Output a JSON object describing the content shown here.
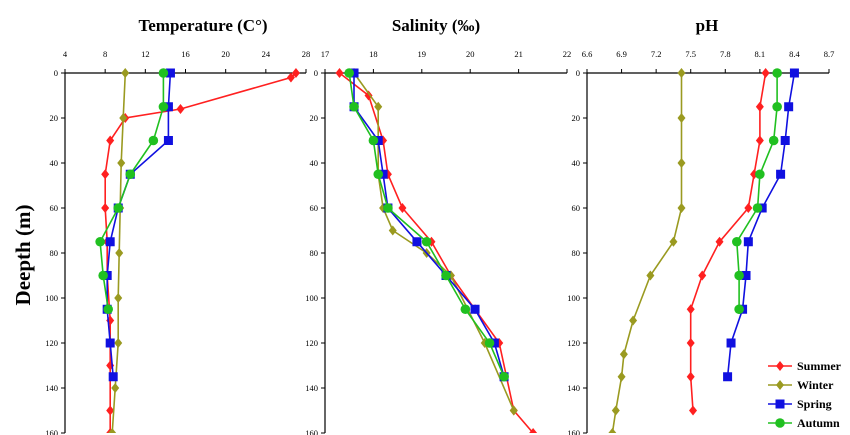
{
  "colors": {
    "Summer": "#ff2020",
    "Winter": "#9a9a20",
    "Spring": "#1010e0",
    "Autumn": "#20c020"
  },
  "legend": [
    "Summer",
    "Winter",
    "Spring",
    "Autumn"
  ],
  "ylabel": "Deepth (m)",
  "chart_data": [
    {
      "type": "line",
      "title": "Temperature (C°)",
      "xlabel": "",
      "ylabel": "Deepth (m)",
      "xlim": [
        4,
        28
      ],
      "xticks": [
        "4",
        "8",
        "12",
        "16",
        "20",
        "24",
        "28"
      ],
      "ylim": [
        0,
        160
      ],
      "yticks": [
        "0",
        "20",
        "40",
        "60",
        "80",
        "100",
        "120",
        "140",
        "160"
      ],
      "x_axis_position": "top",
      "legend_position": "bottom-right",
      "series": [
        {
          "name": "Summer",
          "marker": "diamond",
          "points": [
            [
              27,
              0
            ],
            [
              26.5,
              2
            ],
            [
              15.5,
              16
            ],
            [
              10,
              20
            ],
            [
              8.5,
              30
            ],
            [
              8,
              45
            ],
            [
              8,
              60
            ],
            [
              8.2,
              75
            ],
            [
              8.2,
              90
            ],
            [
              8.5,
              110
            ],
            [
              8.5,
              130
            ],
            [
              8.5,
              150
            ],
            [
              8.5,
              160
            ]
          ]
        },
        {
          "name": "Winter",
          "marker": "diamond",
          "points": [
            [
              10,
              0
            ],
            [
              9.8,
              20
            ],
            [
              9.6,
              40
            ],
            [
              9.5,
              60
            ],
            [
              9.4,
              80
            ],
            [
              9.3,
              100
            ],
            [
              9.3,
              120
            ],
            [
              9,
              140
            ],
            [
              8.7,
              160
            ]
          ]
        },
        {
          "name": "Spring",
          "marker": "square",
          "points": [
            [
              14.5,
              0
            ],
            [
              14.3,
              15
            ],
            [
              14.3,
              30
            ],
            [
              10.5,
              45
            ],
            [
              9.3,
              60
            ],
            [
              8.5,
              75
            ],
            [
              8.2,
              90
            ],
            [
              8.2,
              105
            ],
            [
              8.5,
              120
            ],
            [
              8.8,
              135
            ]
          ]
        },
        {
          "name": "Autumn",
          "marker": "circle",
          "points": [
            [
              13.8,
              0
            ],
            [
              13.8,
              15
            ],
            [
              12.8,
              30
            ],
            [
              10.5,
              45
            ],
            [
              9.3,
              60
            ],
            [
              7.5,
              75
            ],
            [
              7.8,
              90
            ],
            [
              8.3,
              105
            ]
          ]
        }
      ]
    },
    {
      "type": "line",
      "title": "Salinity (‰)",
      "xlabel": "",
      "ylabel": "Deepth (m)",
      "xlim": [
        17,
        22
      ],
      "xticks": [
        "17",
        "18",
        "19",
        "20",
        "21",
        "22"
      ],
      "ylim": [
        0,
        160
      ],
      "yticks": [
        "0",
        "20",
        "40",
        "60",
        "80",
        "100",
        "120",
        "140",
        "160"
      ],
      "x_axis_position": "top",
      "legend_position": "bottom-right",
      "series": [
        {
          "name": "Summer",
          "marker": "diamond",
          "points": [
            [
              17.3,
              0
            ],
            [
              17.9,
              10
            ],
            [
              18.2,
              30
            ],
            [
              18.3,
              45
            ],
            [
              18.6,
              60
            ],
            [
              19.2,
              75
            ],
            [
              19.6,
              90
            ],
            [
              20.1,
              105
            ],
            [
              20.6,
              120
            ],
            [
              20.9,
              150
            ],
            [
              21.3,
              160
            ]
          ]
        },
        {
          "name": "Winter",
          "marker": "diamond",
          "points": [
            [
              17.6,
              0
            ],
            [
              18.1,
              15
            ],
            [
              18.1,
              30
            ],
            [
              18.1,
              45
            ],
            [
              18.2,
              60
            ],
            [
              18.4,
              70
            ],
            [
              19.1,
              80
            ],
            [
              19.6,
              90
            ],
            [
              20.3,
              120
            ],
            [
              20.9,
              150
            ]
          ]
        },
        {
          "name": "Spring",
          "marker": "square",
          "points": [
            [
              17.6,
              0
            ],
            [
              17.6,
              15
            ],
            [
              18.1,
              30
            ],
            [
              18.2,
              45
            ],
            [
              18.3,
              60
            ],
            [
              18.9,
              75
            ],
            [
              19.5,
              90
            ],
            [
              20.1,
              105
            ],
            [
              20.5,
              120
            ],
            [
              20.7,
              135
            ]
          ]
        },
        {
          "name": "Autumn",
          "marker": "circle",
          "points": [
            [
              17.5,
              0
            ],
            [
              17.6,
              15
            ],
            [
              18.0,
              30
            ],
            [
              18.1,
              45
            ],
            [
              18.3,
              60
            ],
            [
              19.1,
              75
            ],
            [
              19.5,
              90
            ],
            [
              19.9,
              105
            ],
            [
              20.4,
              120
            ],
            [
              20.7,
              135
            ]
          ]
        }
      ]
    },
    {
      "type": "line",
      "title": "pH",
      "xlabel": "",
      "ylabel": "Deepth (m)",
      "xlim": [
        6.6,
        8.7
      ],
      "xticks": [
        "6.6",
        "6.9",
        "7.2",
        "7.5",
        "7.8",
        "8.1",
        "8.4",
        "8.7"
      ],
      "ylim": [
        0,
        160
      ],
      "yticks": [
        "0",
        "20",
        "40",
        "60",
        "80",
        "100",
        "120",
        "140",
        "160"
      ],
      "x_axis_position": "top",
      "legend_position": "bottom-right",
      "series": [
        {
          "name": "Summer",
          "marker": "diamond",
          "points": [
            [
              8.15,
              0
            ],
            [
              8.1,
              15
            ],
            [
              8.1,
              30
            ],
            [
              8.05,
              45
            ],
            [
              8.0,
              60
            ],
            [
              7.75,
              75
            ],
            [
              7.6,
              90
            ],
            [
              7.5,
              105
            ],
            [
              7.5,
              120
            ],
            [
              7.5,
              135
            ],
            [
              7.52,
              150
            ]
          ]
        },
        {
          "name": "Winter",
          "marker": "diamond",
          "points": [
            [
              7.42,
              0
            ],
            [
              7.42,
              20
            ],
            [
              7.42,
              40
            ],
            [
              7.42,
              60
            ],
            [
              7.35,
              75
            ],
            [
              7.15,
              90
            ],
            [
              7.0,
              110
            ],
            [
              6.92,
              125
            ],
            [
              6.9,
              135
            ],
            [
              6.85,
              150
            ],
            [
              6.82,
              160
            ]
          ]
        },
        {
          "name": "Spring",
          "marker": "square",
          "points": [
            [
              8.4,
              0
            ],
            [
              8.35,
              15
            ],
            [
              8.32,
              30
            ],
            [
              8.28,
              45
            ],
            [
              8.12,
              60
            ],
            [
              8.0,
              75
            ],
            [
              7.98,
              90
            ],
            [
              7.95,
              105
            ],
            [
              7.85,
              120
            ],
            [
              7.82,
              135
            ]
          ]
        },
        {
          "name": "Autumn",
          "marker": "circle",
          "points": [
            [
              8.25,
              0
            ],
            [
              8.25,
              15
            ],
            [
              8.22,
              30
            ],
            [
              8.1,
              45
            ],
            [
              8.08,
              60
            ],
            [
              7.9,
              75
            ],
            [
              7.92,
              90
            ],
            [
              7.92,
              105
            ]
          ]
        }
      ]
    }
  ]
}
